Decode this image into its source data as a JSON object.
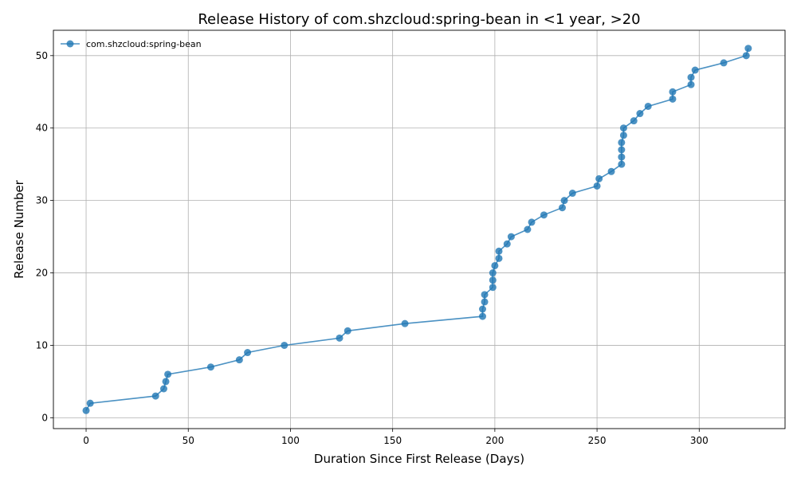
{
  "chart_data": {
    "type": "line",
    "title": "Release History of com.shzcloud:spring-bean in <1 year, >20",
    "xlabel": "Duration Since First Release (Days)",
    "ylabel": "Release Number",
    "xlim": [
      -16,
      342
    ],
    "ylim": [
      -1.5,
      53.5
    ],
    "xticks": [
      0,
      50,
      100,
      150,
      200,
      250,
      300
    ],
    "yticks": [
      0,
      10,
      20,
      30,
      40,
      50
    ],
    "grid": true,
    "legend_position": "top-left",
    "series": [
      {
        "name": "com.shzcloud:spring-bean",
        "color": "#1f77b4",
        "marker": "circle",
        "x": [
          0,
          2,
          34,
          38,
          39,
          40,
          61,
          75,
          79,
          97,
          124,
          128,
          156,
          194,
          194,
          195,
          195,
          199,
          199,
          199,
          200,
          202,
          202,
          206,
          208,
          216,
          218,
          224,
          233,
          234,
          238,
          250,
          251,
          257,
          262,
          262,
          262,
          262,
          263,
          263,
          268,
          271,
          275,
          287,
          287,
          296,
          296,
          298,
          312,
          323,
          324
        ],
        "y": [
          1,
          2,
          3,
          4,
          5,
          6,
          7,
          8,
          9,
          10,
          11,
          12,
          13,
          14,
          15,
          16,
          17,
          18,
          19,
          20,
          21,
          22,
          23,
          24,
          25,
          26,
          27,
          28,
          29,
          30,
          31,
          32,
          33,
          34,
          35,
          36,
          37,
          38,
          39,
          40,
          41,
          42,
          43,
          44,
          45,
          46,
          47,
          48,
          49,
          50,
          51
        ]
      }
    ]
  }
}
